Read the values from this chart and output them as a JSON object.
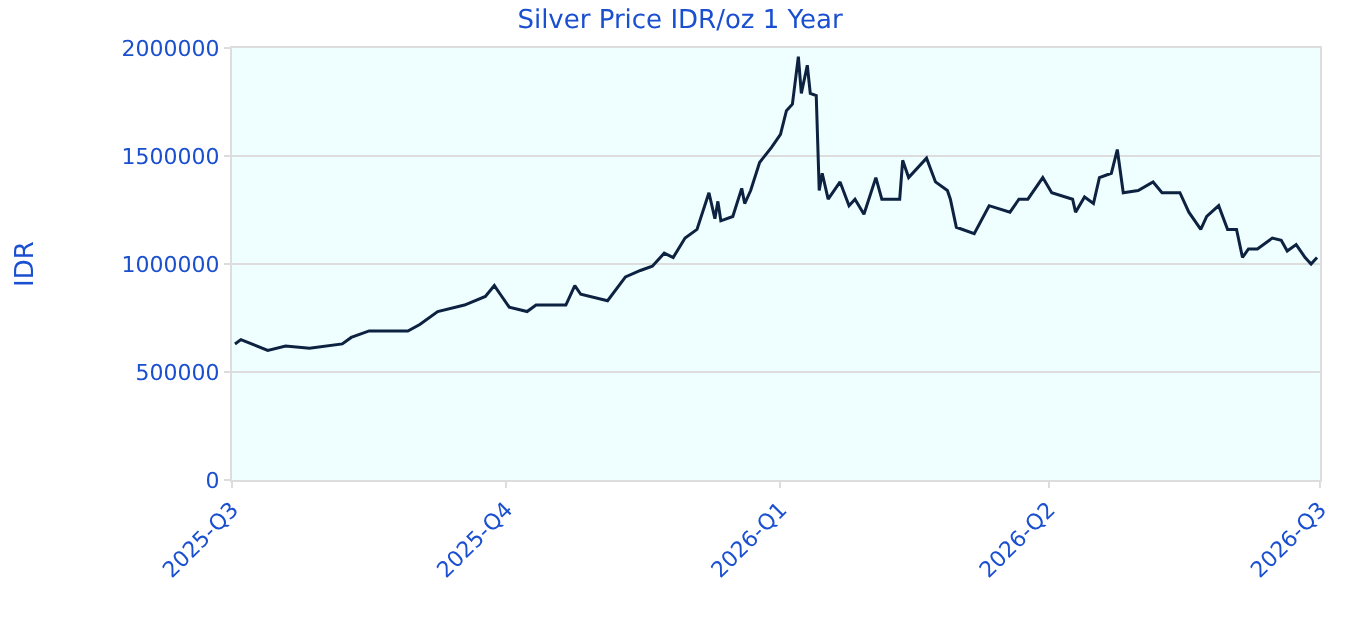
{
  "chart_data": {
    "type": "line",
    "title": "Silver Price IDR/oz 1 Year",
    "ylabel": "IDR",
    "x": [
      "2025-07-02",
      "2025-07-04",
      "2025-07-13",
      "2025-07-19",
      "2025-07-27",
      "2025-08-07",
      "2025-08-10",
      "2025-08-16",
      "2025-08-24",
      "2025-08-29",
      "2025-09-02",
      "2025-09-08",
      "2025-09-17",
      "2025-09-24",
      "2025-09-27",
      "2025-09-29",
      "2025-10-02",
      "2025-10-08",
      "2025-10-11",
      "2025-10-21",
      "2025-10-24",
      "2025-10-26",
      "2025-11-04",
      "2025-11-10",
      "2025-11-15",
      "2025-11-19",
      "2025-11-23",
      "2025-11-26",
      "2025-11-30",
      "2025-12-04",
      "2025-12-08",
      "2025-12-10",
      "2025-12-11",
      "2025-12-12",
      "2025-12-16",
      "2025-12-19",
      "2025-12-20",
      "2025-12-22",
      "2025-12-25",
      "2025-12-29",
      "2026-01-01",
      "2026-01-03",
      "2026-01-05",
      "2026-01-07",
      "2026-01-08",
      "2026-01-10",
      "2026-01-11",
      "2026-01-13",
      "2026-01-14",
      "2026-01-15",
      "2026-01-17",
      "2026-01-21",
      "2026-01-24",
      "2026-01-26",
      "2026-01-29",
      "2026-02-02",
      "2026-02-04",
      "2026-02-10",
      "2026-02-11",
      "2026-02-13",
      "2026-02-19",
      "2026-02-22",
      "2026-02-26",
      "2026-02-27",
      "2026-03-01",
      "2026-03-07",
      "2026-03-12",
      "2026-03-19",
      "2026-03-22",
      "2026-03-25",
      "2026-03-30",
      "2026-04-02",
      "2026-04-09",
      "2026-04-10",
      "2026-04-13",
      "2026-04-16",
      "2026-04-18",
      "2026-04-22",
      "2026-04-24",
      "2026-04-26",
      "2026-05-01",
      "2026-05-06",
      "2026-05-09",
      "2026-05-15",
      "2026-05-18",
      "2026-05-22",
      "2026-05-24",
      "2026-05-28",
      "2026-05-31",
      "2026-06-03",
      "2026-06-05",
      "2026-06-07",
      "2026-06-10",
      "2026-06-15",
      "2026-06-18",
      "2026-06-20",
      "2026-06-23",
      "2026-06-26",
      "2026-06-28",
      "2026-06-30"
    ],
    "series": [
      {
        "color": "#0d2240",
        "values": [
          630000,
          650000,
          600000,
          620000,
          610000,
          630000,
          660000,
          690000,
          690000,
          690000,
          720000,
          780000,
          810000,
          850000,
          900000,
          860000,
          800000,
          780000,
          810000,
          810000,
          900000,
          860000,
          830000,
          940000,
          970000,
          990000,
          1050000,
          1030000,
          1120000,
          1160000,
          1330000,
          1210000,
          1290000,
          1200000,
          1220000,
          1350000,
          1280000,
          1340000,
          1470000,
          1540000,
          1600000,
          1710000,
          1740000,
          1960000,
          1790000,
          1920000,
          1790000,
          1780000,
          1340000,
          1420000,
          1300000,
          1380000,
          1270000,
          1300000,
          1230000,
          1400000,
          1300000,
          1300000,
          1480000,
          1400000,
          1490000,
          1380000,
          1340000,
          1300000,
          1170000,
          1140000,
          1270000,
          1240000,
          1300000,
          1300000,
          1400000,
          1330000,
          1300000,
          1240000,
          1310000,
          1280000,
          1400000,
          1420000,
          1530000,
          1330000,
          1340000,
          1380000,
          1330000,
          1330000,
          1240000,
          1160000,
          1220000,
          1270000,
          1160000,
          1160000,
          1030000,
          1070000,
          1070000,
          1120000,
          1110000,
          1060000,
          1090000,
          1030000,
          1000000,
          1030000
        ]
      }
    ],
    "xlim": [
      "2025-07-01",
      "2026-07-01"
    ],
    "xticks": [
      {
        "value": "2025-07-01",
        "label": "2025-Q3"
      },
      {
        "value": "2025-10-01",
        "label": "2025-Q4"
      },
      {
        "value": "2026-01-01",
        "label": "2026-Q1"
      },
      {
        "value": "2026-04-01",
        "label": "2026-Q2"
      },
      {
        "value": "2026-07-01",
        "label": "2026-Q3"
      }
    ],
    "ylim": [
      0,
      2000000
    ],
    "yticks": [
      0,
      500000,
      1000000,
      1500000,
      2000000
    ],
    "grid": "y",
    "legend": false,
    "marker": "none",
    "line_style": "solid"
  }
}
